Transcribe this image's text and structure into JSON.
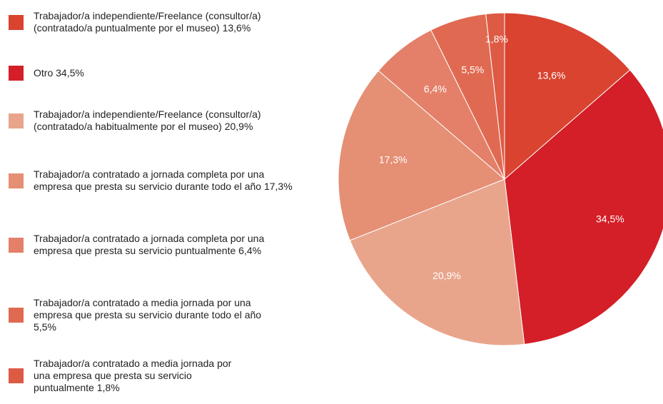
{
  "chart_data": {
    "type": "pie",
    "categories": [
      "Trabajador/a independiente/Freelance (consultor/a) (contratado/a puntualmente por el museo) 13,6%",
      "Otro 34,5%",
      "Trabajador/a independiente/Freelance (consultor/a) (contratado/a habitualmente por el museo) 20,9%",
      "Trabajador/a contratado a jornada completa por una empresa que presta su servicio durante todo el año 17,3%",
      "Trabajador/a contratado a jornada completa por una empresa que presta su servicio puntualmente 6,4%",
      "Trabajador/a contratado a media jornada por una empresa que presta su servicio durante todo el año 5,5%",
      "Trabajador/a contratado a media jornada por una empresa que presta su servicio puntualmente 1,8%"
    ],
    "values": [
      13.6,
      34.5,
      20.9,
      17.3,
      6.4,
      5.5,
      1.8
    ],
    "value_labels": [
      "13,6%",
      "34,5%",
      "20,9%",
      "17,3%",
      "6,4%",
      "5,5%",
      "1,8%"
    ],
    "colors": [
      "#d9432f",
      "#d41f28",
      "#e9a58c",
      "#e58f74",
      "#e4806a",
      "#e06a51",
      "#dd5a45"
    ]
  }
}
